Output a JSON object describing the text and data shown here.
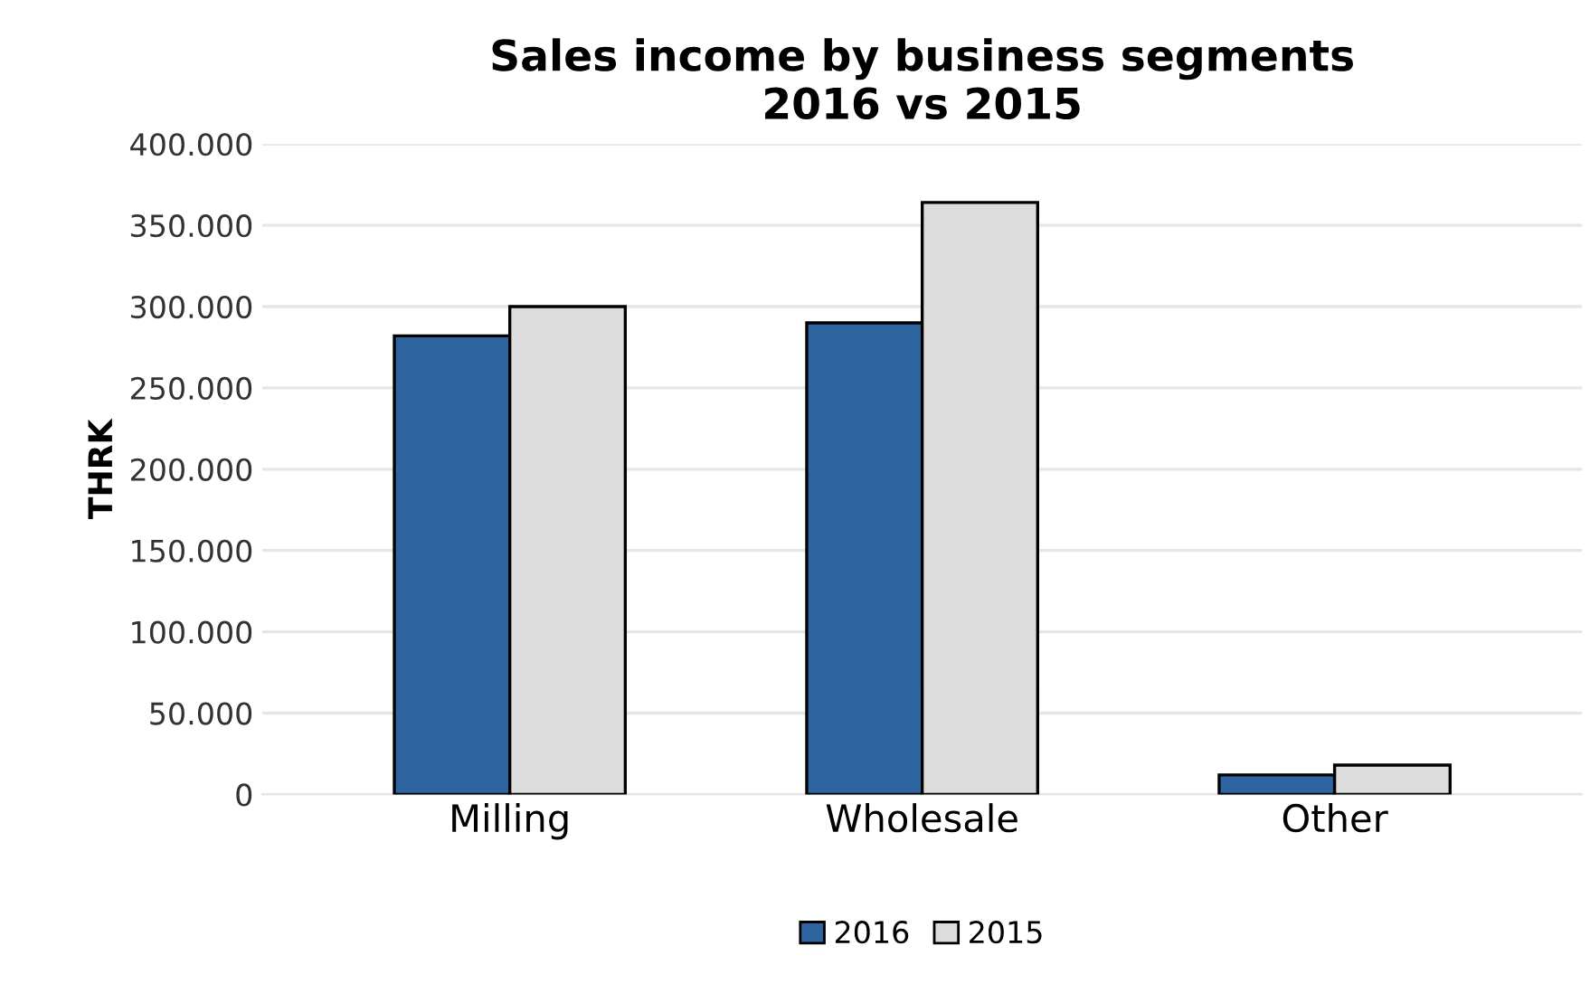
{
  "chart_data": {
    "type": "bar",
    "title": "Sales income by business segments\n2016 vs 2015",
    "ylabel": "THRK",
    "categories": [
      "Milling",
      "Wholesale",
      "Other"
    ],
    "series": [
      {
        "name": "2016",
        "color": "#2e64a0",
        "values": [
          282000,
          290000,
          12000
        ]
      },
      {
        "name": "2015",
        "color": "#dcdcdc",
        "values": [
          300000,
          364000,
          18000
        ]
      }
    ],
    "ylim": [
      0,
      400000
    ],
    "yticks": [
      0,
      {
        "value": 50000,
        "label": "50.000"
      },
      {
        "value": 100000,
        "label": "100.000"
      },
      {
        "value": 150000,
        "label": "150.000"
      },
      {
        "value": 200000,
        "label": "200.000"
      },
      {
        "value": 250000,
        "label": "250.000"
      },
      {
        "value": 300000,
        "label": "300.000"
      },
      {
        "value": 350000,
        "label": "350.000"
      },
      {
        "value": 400000,
        "label": "400.000"
      }
    ],
    "grid": "y",
    "legend": "bottom"
  }
}
